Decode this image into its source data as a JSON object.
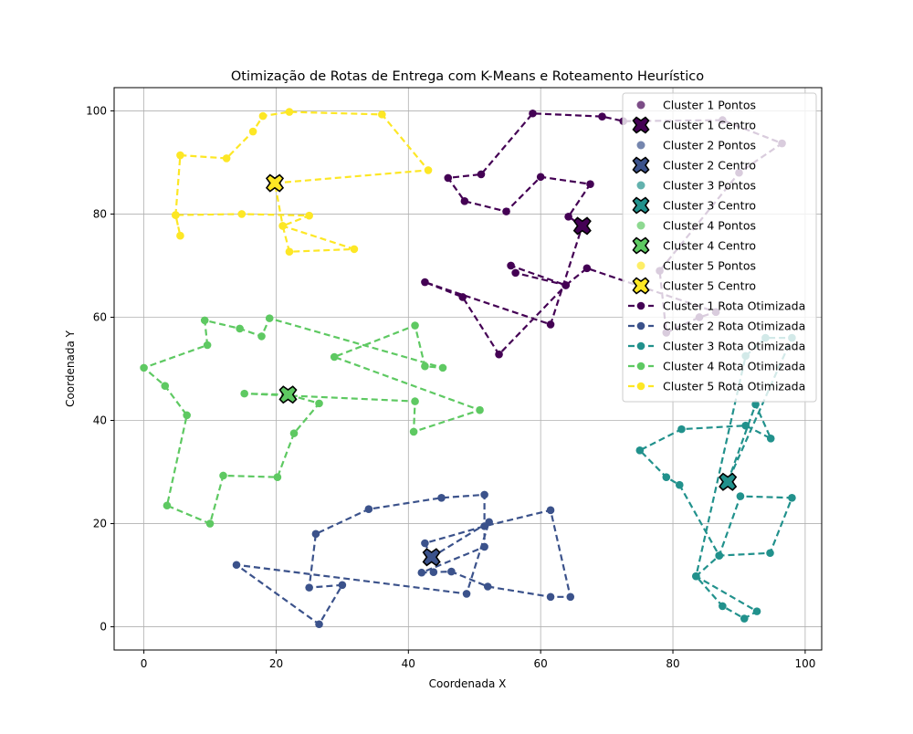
{
  "chart_data": {
    "type": "scatter",
    "title": "Otimização de Rotas de Entrega com K-Means e Roteamento Heurístico",
    "xlabel": "Coordenada X",
    "ylabel": "Coordenada Y",
    "xlim": [
      -4.5,
      102.5
    ],
    "ylim": [
      -4.5,
      104.5
    ],
    "xticks": [
      0,
      20,
      40,
      60,
      80,
      100
    ],
    "yticks": [
      0,
      20,
      40,
      60,
      80,
      100
    ],
    "grid": true,
    "legend_position": "top-right",
    "legend": [
      {
        "label": "Cluster 1 Pontos",
        "kind": "points",
        "cluster": 0
      },
      {
        "label": "Cluster 1 Centro",
        "kind": "center",
        "cluster": 0
      },
      {
        "label": "Cluster 2 Pontos",
        "kind": "points",
        "cluster": 1
      },
      {
        "label": "Cluster 2 Centro",
        "kind": "center",
        "cluster": 1
      },
      {
        "label": "Cluster 3 Pontos",
        "kind": "points",
        "cluster": 2
      },
      {
        "label": "Cluster 3 Centro",
        "kind": "center",
        "cluster": 2
      },
      {
        "label": "Cluster 4 Pontos",
        "kind": "points",
        "cluster": 3
      },
      {
        "label": "Cluster 4 Centro",
        "kind": "center",
        "cluster": 3
      },
      {
        "label": "Cluster 5 Pontos",
        "kind": "points",
        "cluster": 4
      },
      {
        "label": "Cluster 5 Centro",
        "kind": "center",
        "cluster": 4
      },
      {
        "label": "Cluster 1 Rota Otimizada",
        "kind": "route",
        "cluster": 0
      },
      {
        "label": "Cluster 2 Rota Otimizada",
        "kind": "route",
        "cluster": 1
      },
      {
        "label": "Cluster 3 Rota Otimizada",
        "kind": "route",
        "cluster": 2
      },
      {
        "label": "Cluster 4 Rota Otimizada",
        "kind": "route",
        "cluster": 3
      },
      {
        "label": "Cluster 5 Rota Otimizada",
        "kind": "route",
        "cluster": 4
      }
    ],
    "clusters": [
      {
        "color": "#440154",
        "center": [
          66.3,
          77.7
        ],
        "route": [
          [
            66.3,
            77.7
          ],
          [
            64.2,
            79.5
          ],
          [
            67.5,
            85.8
          ],
          [
            60.0,
            87.2
          ],
          [
            54.8,
            80.5
          ],
          [
            48.5,
            82.5
          ],
          [
            46.0,
            87.0
          ],
          [
            51.0,
            87.7
          ],
          [
            58.8,
            99.5
          ],
          [
            69.3,
            98.9
          ],
          [
            72.5,
            98.0
          ],
          [
            87.5,
            98.2
          ],
          [
            96.5,
            93.7
          ],
          [
            90.0,
            88.0
          ],
          [
            78.0,
            69.0
          ],
          [
            79.0,
            57.0
          ],
          [
            84.0,
            60.0
          ],
          [
            86.5,
            61.0
          ],
          [
            67.0,
            69.5
          ],
          [
            63.8,
            66.2
          ],
          [
            55.5,
            70.0
          ],
          [
            56.2,
            68.6
          ],
          [
            63.8,
            66.2
          ],
          [
            53.7,
            52.8
          ],
          [
            48.2,
            63.9
          ],
          [
            42.5,
            66.8
          ],
          [
            61.5,
            58.6
          ],
          [
            66.3,
            77.7
          ]
        ]
      },
      {
        "color": "#3b528b",
        "center": [
          43.5,
          13.5
        ],
        "route": [
          [
            43.5,
            13.5
          ],
          [
            42.5,
            16.2
          ],
          [
            51.5,
            19.5
          ],
          [
            61.5,
            22.6
          ],
          [
            64.5,
            5.8
          ],
          [
            61.5,
            5.8
          ],
          [
            52.0,
            7.8
          ],
          [
            46.5,
            10.7
          ],
          [
            43.8,
            10.6
          ],
          [
            42.0,
            10.5
          ],
          [
            51.5,
            15.5
          ],
          [
            51.5,
            25.6
          ],
          [
            45.0,
            25.0
          ],
          [
            34.0,
            22.8
          ],
          [
            26.0,
            18.0
          ],
          [
            25.0,
            7.6
          ],
          [
            30.0,
            8.1
          ],
          [
            26.5,
            0.5
          ],
          [
            14.0,
            12.0
          ],
          [
            48.8,
            6.4
          ],
          [
            52.2,
            20.3
          ],
          [
            43.5,
            13.5
          ]
        ]
      },
      {
        "color": "#21918c",
        "center": [
          88.3,
          28.1
        ],
        "route": [
          [
            88.3,
            28.1
          ],
          [
            92.5,
            43.1
          ],
          [
            94.8,
            36.5
          ],
          [
            91.0,
            39.0
          ],
          [
            81.3,
            38.3
          ],
          [
            75.0,
            34.2
          ],
          [
            79.0,
            29.0
          ],
          [
            81.0,
            27.5
          ],
          [
            87.0,
            13.8
          ],
          [
            94.7,
            14.3
          ],
          [
            98.0,
            25.0
          ],
          [
            90.2,
            25.3
          ],
          [
            87.0,
            13.8
          ],
          [
            83.5,
            9.8
          ],
          [
            87.5,
            4.0
          ],
          [
            90.8,
            1.6
          ],
          [
            92.7,
            3.0
          ],
          [
            83.5,
            9.8
          ],
          [
            91.0,
            52.5
          ],
          [
            94.0,
            56.0
          ],
          [
            98.0,
            56.0
          ],
          [
            88.3,
            28.1
          ]
        ]
      },
      {
        "color": "#5ec962",
        "center": [
          21.8,
          45.0
        ],
        "route": [
          [
            21.8,
            45.0
          ],
          [
            15.2,
            45.2
          ],
          [
            41.0,
            43.7
          ],
          [
            40.8,
            37.8
          ],
          [
            50.8,
            42.0
          ],
          [
            28.8,
            52.3
          ],
          [
            41.0,
            58.4
          ],
          [
            42.5,
            50.5
          ],
          [
            45.2,
            50.2
          ],
          [
            19.0,
            59.8
          ],
          [
            17.8,
            56.3
          ],
          [
            14.5,
            57.8
          ],
          [
            9.2,
            59.4
          ],
          [
            9.6,
            54.6
          ],
          [
            0.0,
            50.2
          ],
          [
            3.2,
            46.7
          ],
          [
            6.5,
            41.0
          ],
          [
            3.5,
            23.5
          ],
          [
            10.0,
            20.0
          ],
          [
            12.0,
            29.3
          ],
          [
            20.2,
            29.0
          ],
          [
            22.7,
            37.5
          ],
          [
            26.5,
            43.3
          ],
          [
            21.8,
            45.0
          ]
        ]
      },
      {
        "color": "#fde725",
        "center": [
          19.8,
          86.0
        ],
        "route": [
          [
            19.8,
            86.0
          ],
          [
            43.0,
            88.5
          ],
          [
            36.0,
            99.3
          ],
          [
            22.0,
            99.8
          ],
          [
            18.0,
            99.0
          ],
          [
            16.5,
            96.0
          ],
          [
            12.5,
            90.8
          ],
          [
            5.5,
            91.4
          ],
          [
            4.8,
            79.8
          ],
          [
            5.5,
            75.8
          ],
          [
            4.8,
            79.8
          ],
          [
            14.8,
            80.0
          ],
          [
            25.0,
            79.7
          ],
          [
            21.0,
            77.7
          ],
          [
            22.0,
            72.7
          ],
          [
            31.8,
            73.2
          ],
          [
            21.0,
            77.7
          ],
          [
            19.8,
            86.0
          ]
        ]
      }
    ]
  }
}
